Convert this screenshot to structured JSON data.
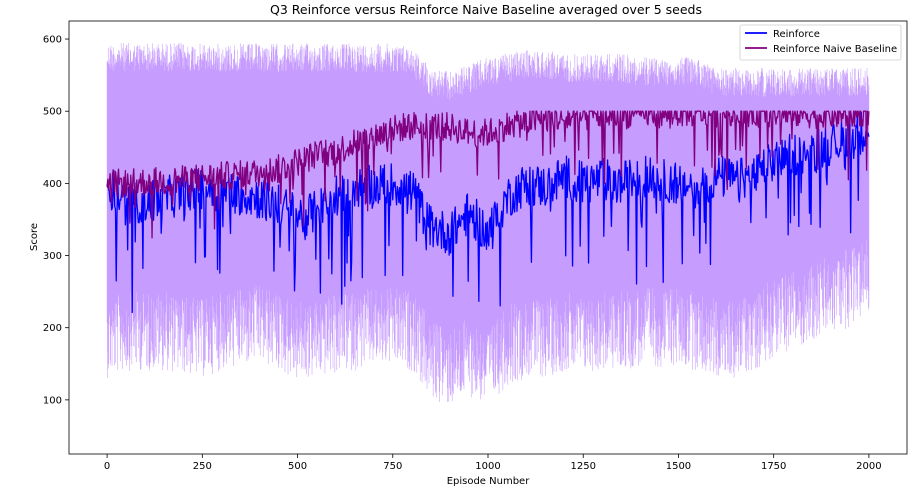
{
  "chart_data": {
    "type": "line",
    "title": "Q3 Reinforce versus Reinforce Naive Baseline averaged over 5 seeds",
    "xlabel": "Episode Number",
    "ylabel": "Score",
    "xlim": [
      -100,
      2100
    ],
    "ylim": [
      25,
      625
    ],
    "xticks": [
      0,
      250,
      500,
      750,
      1000,
      1250,
      1500,
      1750,
      2000
    ],
    "yticks": [
      100,
      200,
      300,
      400,
      500,
      600
    ],
    "grid": false,
    "legend_position": "top-right",
    "series": [
      {
        "name": "Reinforce",
        "color": "#0000ff",
        "band_color": "#a9b4ff",
        "x": [
          0,
          50,
          100,
          150,
          200,
          250,
          300,
          350,
          400,
          450,
          500,
          550,
          600,
          650,
          700,
          750,
          800,
          850,
          900,
          950,
          1000,
          1050,
          1100,
          1150,
          1200,
          1250,
          1300,
          1350,
          1400,
          1450,
          1500,
          1550,
          1600,
          1650,
          1700,
          1750,
          1800,
          1850,
          1900,
          1950,
          2000
        ],
        "mean": [
          400,
          370,
          375,
          380,
          385,
          395,
          390,
          385,
          380,
          370,
          355,
          360,
          385,
          395,
          395,
          400,
          390,
          340,
          330,
          360,
          330,
          380,
          400,
          395,
          410,
          400,
          405,
          400,
          410,
          405,
          400,
          395,
          410,
          405,
          410,
          430,
          440,
          445,
          455,
          460,
          480
        ]
      },
      {
        "name": "Reinforce Naive Baseline",
        "color": "#800080",
        "band_color": "#c79cff",
        "x": [
          0,
          50,
          100,
          150,
          200,
          250,
          300,
          350,
          400,
          450,
          500,
          550,
          600,
          650,
          700,
          750,
          800,
          850,
          900,
          950,
          1000,
          1050,
          1100,
          1150,
          1200,
          1250,
          1300,
          1350,
          1400,
          1450,
          1500,
          1550,
          1600,
          1650,
          1700,
          1750,
          1800,
          1850,
          1900,
          1950,
          2000
        ],
        "mean": [
          400,
          400,
          402,
          403,
          405,
          408,
          410,
          412,
          415,
          420,
          430,
          440,
          445,
          455,
          465,
          475,
          480,
          480,
          478,
          470,
          470,
          480,
          485,
          490,
          490,
          492,
          495,
          495,
          497,
          497,
          498,
          498,
          498,
          498,
          498,
          497,
          497,
          496,
          495,
          496,
          500
        ],
        "band_upper": [
          595,
          595,
          595,
          595,
          595,
          594,
          594,
          594,
          594,
          594,
          594,
          594,
          594,
          594,
          594,
          594,
          590,
          560,
          555,
          565,
          575,
          580,
          585,
          585,
          580,
          580,
          580,
          580,
          575,
          575,
          575,
          575,
          560,
          560,
          560,
          560,
          560,
          560,
          560,
          560,
          560
        ],
        "band_lower": [
          200,
          210,
          210,
          210,
          205,
          200,
          210,
          215,
          220,
          210,
          195,
          200,
          205,
          210,
          215,
          215,
          210,
          170,
          160,
          175,
          160,
          190,
          200,
          200,
          210,
          205,
          210,
          210,
          215,
          215,
          215,
          210,
          200,
          200,
          210,
          230,
          240,
          250,
          260,
          270,
          290
        ]
      }
    ]
  }
}
